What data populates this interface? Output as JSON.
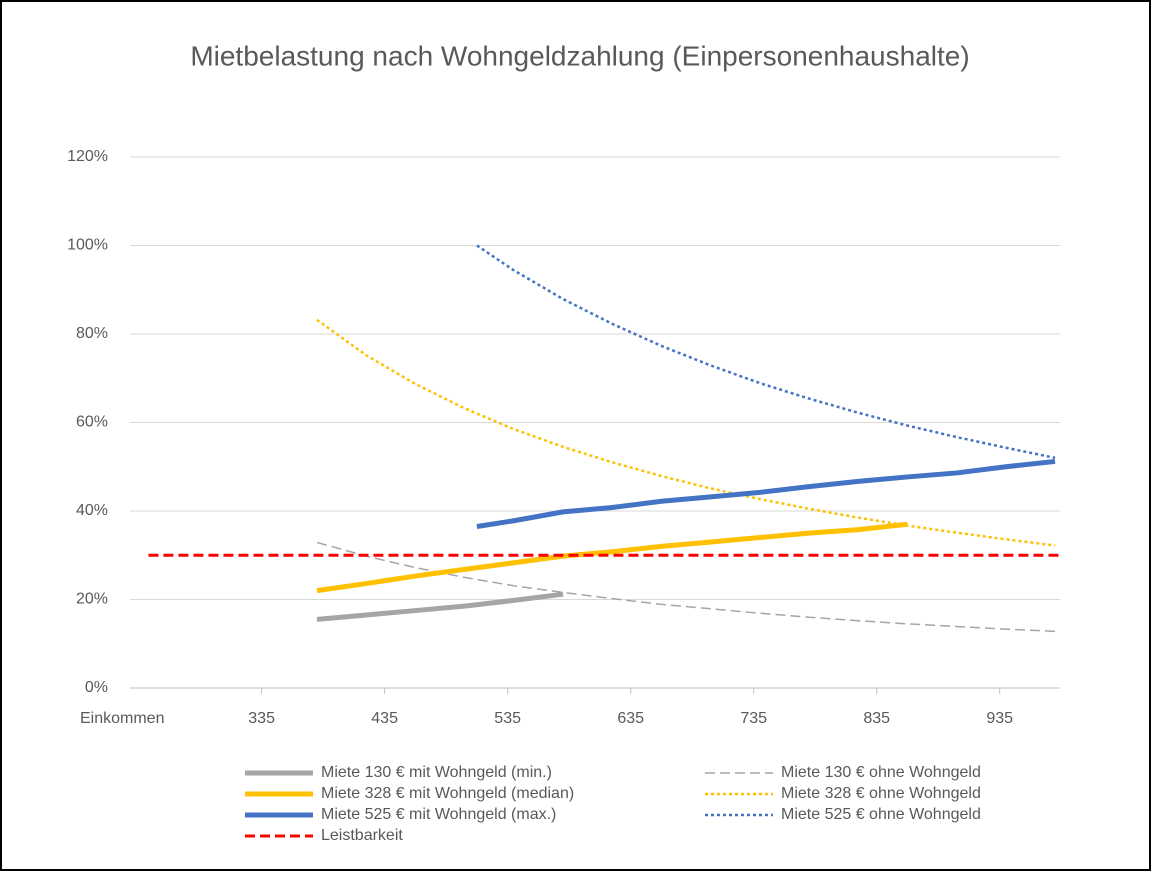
{
  "chart_data": {
    "type": "line",
    "title": "Mietbelastung nach Wohngeldzahlung (Einpersonenhaushalte)",
    "xlabel": "Einkommen",
    "xlim": [
      228,
      984
    ],
    "xticks": [
      335,
      435,
      535,
      635,
      735,
      835,
      935
    ],
    "ylim": [
      0,
      120
    ],
    "yticks": [
      {
        "value": 0,
        "label": "0%"
      },
      {
        "value": 20,
        "label": "20%"
      },
      {
        "value": 40,
        "label": "40%"
      },
      {
        "value": 60,
        "label": "60%"
      },
      {
        "value": 80,
        "label": "80%"
      },
      {
        "value": 100,
        "label": "100%"
      },
      {
        "value": 120,
        "label": "120%"
      }
    ],
    "grid": true,
    "legend": "bottom",
    "series": [
      {
        "name": "Miete 130 € mit Wohngeld (min.)",
        "color": "#a5a5a5",
        "style": "solid",
        "x": [
          380,
          420,
          460,
          500,
          540,
          580
        ],
        "values": [
          15.5,
          16.5,
          17.5,
          18.5,
          19.8,
          21.2
        ]
      },
      {
        "name": "Miete 130 € ohne Wohngeld",
        "color": "#a5a5a5",
        "style": "dashed",
        "x": [
          380,
          420,
          460,
          500,
          540,
          580,
          620,
          660,
          700,
          740,
          780,
          820,
          860,
          900,
          940,
          980
        ],
        "values": [
          32.9,
          29.8,
          27.2,
          25,
          23.1,
          21.6,
          20.2,
          18.9,
          17.9,
          16.9,
          16,
          15.2,
          14.5,
          13.9,
          13.3,
          12.8
        ]
      },
      {
        "name": "Miete 328 € mit Wohngeld (median)",
        "color": "#ffc000",
        "style": "solid",
        "x": [
          380,
          420,
          460,
          500,
          540,
          580,
          620,
          660,
          700,
          740,
          780,
          820,
          860
        ],
        "values": [
          22,
          23.6,
          25.3,
          26.8,
          28.3,
          29.8,
          30.8,
          32,
          33,
          34,
          35,
          35.8,
          37
        ]
      },
      {
        "name": "Miete 328 € ohne Wohngeld",
        "color": "#ffc000",
        "style": "dotted",
        "x": [
          380,
          420,
          460,
          500,
          540,
          580,
          620,
          660,
          700,
          740,
          780,
          820,
          860,
          900,
          940,
          980
        ],
        "values": [
          83.2,
          75.2,
          68.7,
          63.2,
          58.5,
          54.5,
          51,
          47.9,
          45.1,
          42.7,
          40.5,
          38.5,
          36.7,
          35.1,
          33.6,
          32.2
        ]
      },
      {
        "name": "Miete 525 € mit Wohngeld (max.)",
        "color": "#4472c4",
        "style": "solid",
        "x": [
          510,
          540,
          580,
          620,
          660,
          700,
          740,
          780,
          820,
          860,
          900,
          940,
          980
        ],
        "values": [
          36.5,
          37.8,
          39.8,
          40.8,
          42.2,
          43.2,
          44.2,
          45.5,
          46.7,
          47.7,
          48.6,
          50,
          51.2
        ]
      },
      {
        "name": "Miete 525 € ohne Wohngeld",
        "color": "#4472c4",
        "style": "dotted",
        "x": [
          510,
          540,
          580,
          620,
          660,
          700,
          740,
          780,
          820,
          860,
          900,
          940,
          980
        ],
        "values": [
          100,
          94.4,
          87.9,
          82.3,
          77.3,
          72.9,
          68.9,
          65.4,
          62.2,
          59.3,
          56.7,
          54.3,
          52
        ]
      },
      {
        "name": "Leistbarkeit",
        "color": "#ff0000",
        "style": "dashed",
        "x": [
          243,
          984
        ],
        "values": [
          30,
          30
        ]
      }
    ]
  }
}
